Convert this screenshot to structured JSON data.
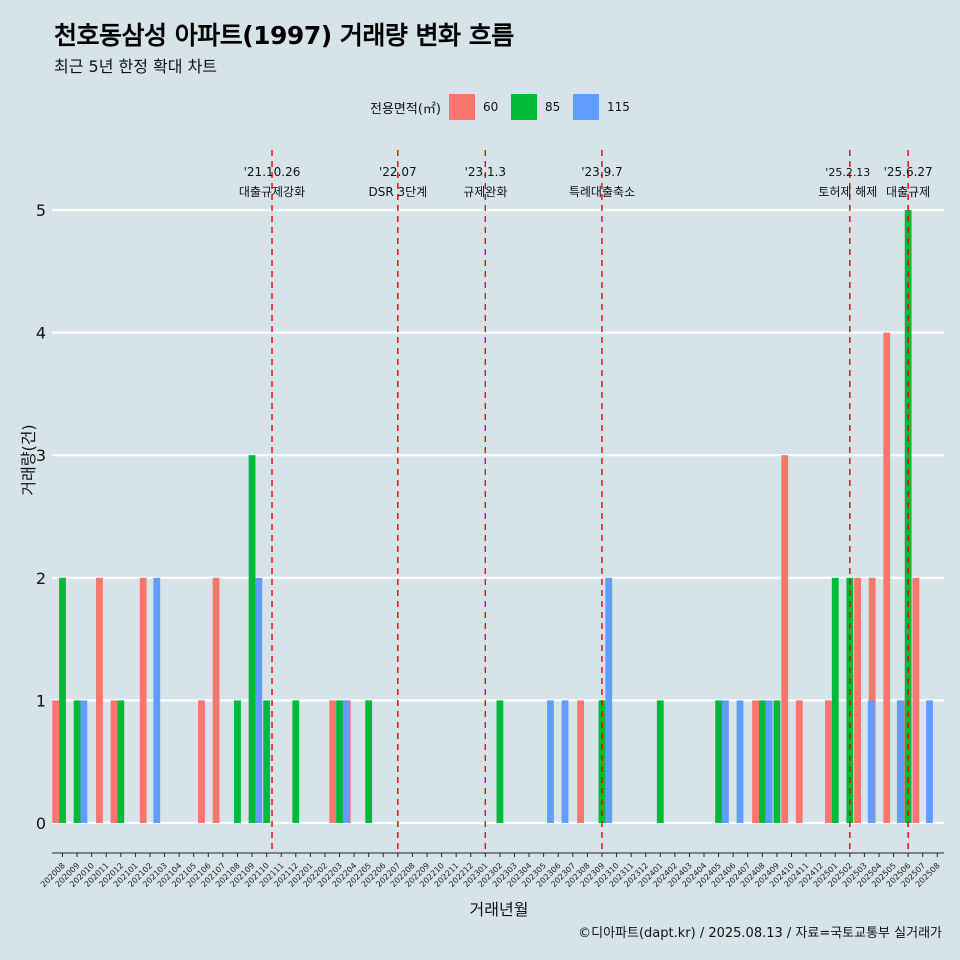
{
  "title": "천호동삼성 아파트(1997) 거래량 변화 흐름",
  "subtitle": "최근 5년 한정 확대 차트",
  "caption": "©디아파트(dapt.kr) / 2025.08.13 / 자료=국토교통부 실거래가",
  "colors": {
    "background": "#d6e4ea",
    "s60": "#f8766d",
    "s85": "#00ba38",
    "s115": "#619cff",
    "event_line": "#ee0000",
    "grid": "#ffffff"
  },
  "legend": {
    "title": "전용면적(㎡)",
    "items": [
      {
        "label": "60",
        "color": "#f8766d"
      },
      {
        "label": "85",
        "color": "#00ba38"
      },
      {
        "label": "115",
        "color": "#619cff"
      }
    ]
  },
  "chart_data": {
    "type": "bar",
    "xlabel": "거래년월",
    "ylabel": "거래량(건)",
    "ylim": [
      0,
      5
    ],
    "yticks": [
      0,
      1,
      2,
      3,
      4,
      5
    ],
    "grid": "horizontal",
    "categories": [
      "202008",
      "202009",
      "202010",
      "202011",
      "202012",
      "202101",
      "202102",
      "202103",
      "202104",
      "202105",
      "202106",
      "202107",
      "202108",
      "202109",
      "202110",
      "202111",
      "202112",
      "202201",
      "202202",
      "202203",
      "202204",
      "202205",
      "202206",
      "202207",
      "202208",
      "202209",
      "202210",
      "202211",
      "202212",
      "202301",
      "202302",
      "202303",
      "202304",
      "202305",
      "202306",
      "202307",
      "202308",
      "202309",
      "202310",
      "202311",
      "202312",
      "202401",
      "202402",
      "202403",
      "202404",
      "202405",
      "202406",
      "202407",
      "202408",
      "202409",
      "202410",
      "202411",
      "202412",
      "202501",
      "202502",
      "202503",
      "202504",
      "202505",
      "202506",
      "202507",
      "202508"
    ],
    "series": [
      {
        "name": "60",
        "color": "#f8766d",
        "values": [
          1,
          0,
          0,
          2,
          1,
          0,
          2,
          0,
          0,
          0,
          1,
          2,
          0,
          0,
          0,
          0,
          0,
          0,
          0,
          1,
          1,
          0,
          0,
          0,
          0,
          0,
          0,
          0,
          0,
          0,
          0,
          0,
          0,
          0,
          0,
          0,
          1,
          0,
          0,
          0,
          0,
          0,
          0,
          0,
          0,
          0,
          0,
          0,
          1,
          0,
          3,
          1,
          0,
          1,
          0,
          2,
          2,
          4,
          1,
          2,
          0
        ]
      },
      {
        "name": "85",
        "color": "#00ba38",
        "values": [
          2,
          1,
          0,
          0,
          1,
          0,
          0,
          0,
          0,
          0,
          0,
          0,
          1,
          3,
          1,
          0,
          1,
          0,
          0,
          1,
          0,
          1,
          0,
          0,
          0,
          0,
          0,
          0,
          0,
          0,
          1,
          0,
          0,
          0,
          0,
          0,
          0,
          1,
          0,
          0,
          0,
          1,
          0,
          0,
          0,
          1,
          0,
          0,
          1,
          1,
          0,
          0,
          0,
          2,
          2,
          0,
          0,
          0,
          5,
          0,
          0
        ]
      },
      {
        "name": "115",
        "color": "#619cff",
        "values": [
          0,
          1,
          0,
          0,
          0,
          0,
          2,
          0,
          0,
          0,
          0,
          0,
          0,
          2,
          0,
          0,
          0,
          0,
          0,
          1,
          0,
          0,
          0,
          0,
          0,
          0,
          0,
          0,
          0,
          0,
          0,
          0,
          0,
          1,
          1,
          0,
          0,
          2,
          0,
          0,
          0,
          0,
          0,
          0,
          0,
          1,
          1,
          0,
          1,
          0,
          0,
          0,
          0,
          0,
          0,
          1,
          0,
          1,
          0,
          1,
          0
        ]
      }
    ],
    "events": [
      {
        "date": "'21.10.26",
        "label": "대출규제강화",
        "at": "202110",
        "offset": 0.37
      },
      {
        "date": "'22.07",
        "label": "DSR 3단계",
        "at": "202207",
        "offset": 0.0
      },
      {
        "date": "'23.1.3",
        "label": "규제완화",
        "at": "202301",
        "offset": 0.0
      },
      {
        "date": "'23.9.7",
        "label": "특례대출축소",
        "at": "202309",
        "offset": 0.0
      },
      {
        "date": "'25.2.13",
        "label": "토허제 해제",
        "at": "202502",
        "offset": 0.0
      },
      {
        "date": "'25.6.27",
        "label": "대출규제",
        "at": "202506",
        "offset": 0.0
      }
    ]
  }
}
